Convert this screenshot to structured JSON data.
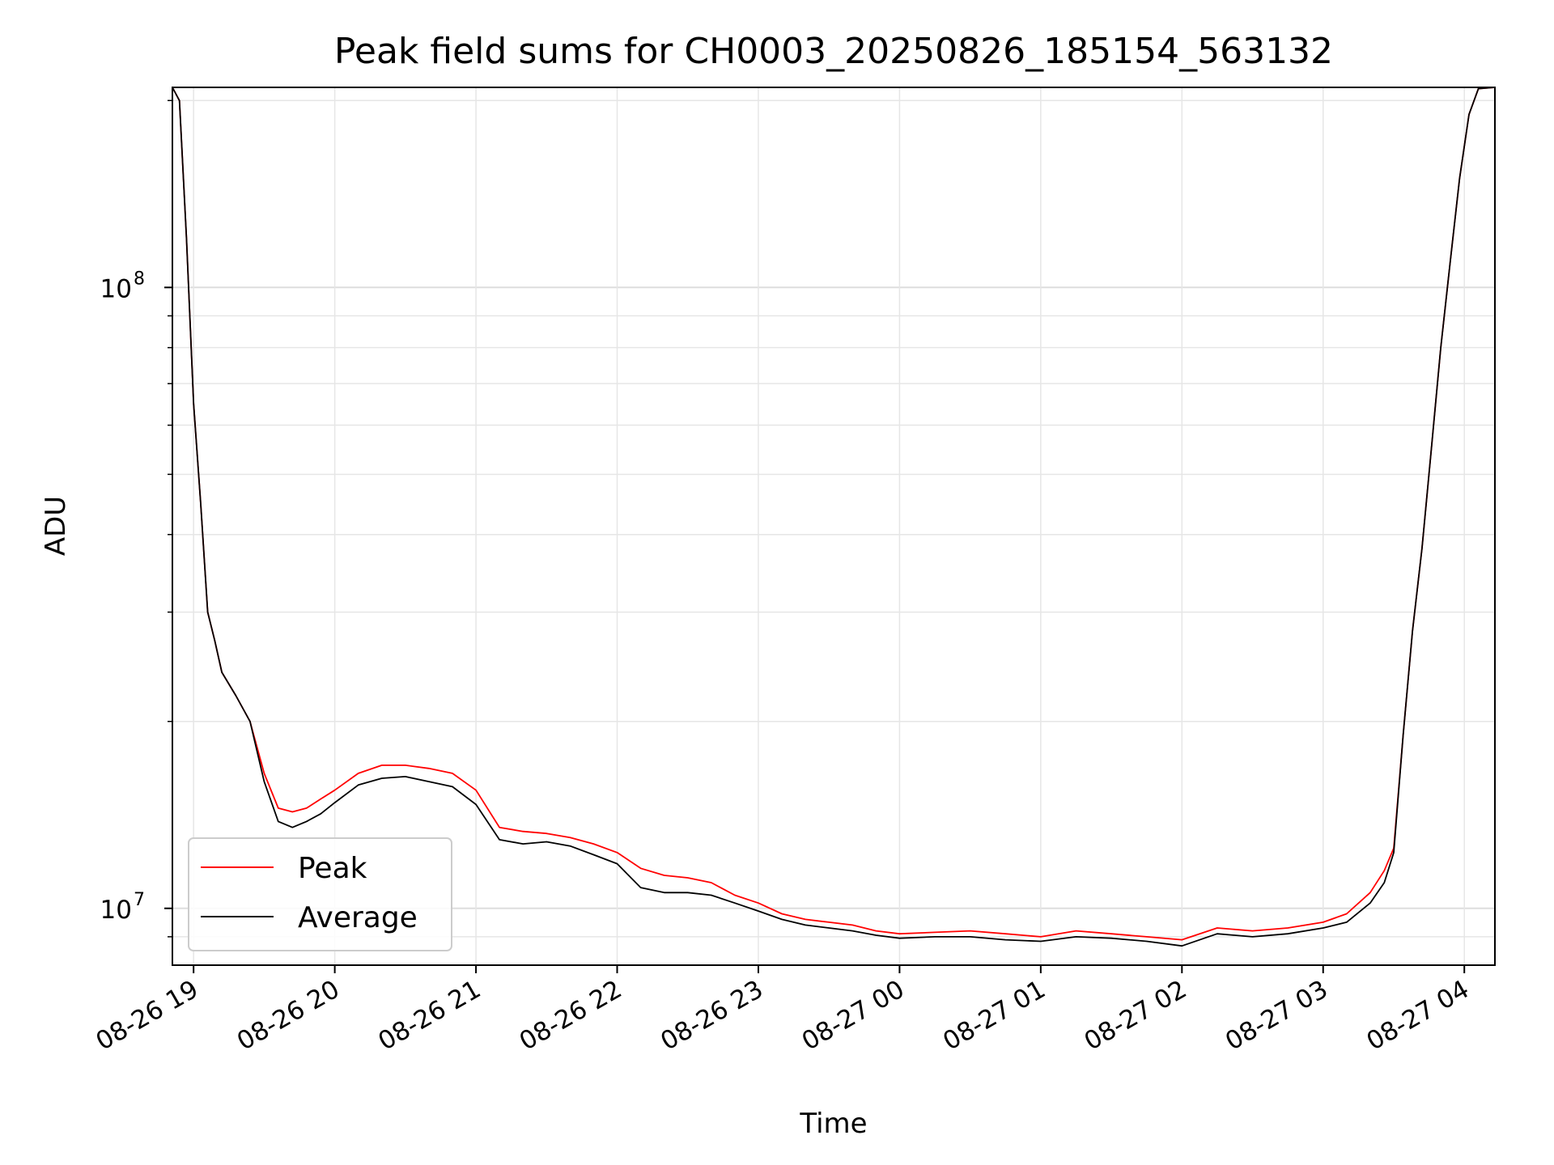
{
  "chart_data": {
    "type": "line",
    "title": "Peak field sums for CH0003_20250826_185154_563132",
    "xlabel": "Time",
    "ylabel": "ADU",
    "yscale": "log",
    "ylim": [
      8100000,
      210000000
    ],
    "xlim": [
      "2025-08-26 18:51",
      "2025-08-27 04:13"
    ],
    "grid": true,
    "legend_placement": "lower-left",
    "x_ticks": [
      "08-26 19",
      "08-26 20",
      "08-26 21",
      "08-26 22",
      "08-26 23",
      "08-27 00",
      "08-27 01",
      "08-27 02",
      "08-27 03",
      "08-27 04"
    ],
    "y_ticks": [
      {
        "base": "10",
        "exp": "7",
        "value": 10000000
      },
      {
        "base": "10",
        "exp": "8",
        "value": 100000000
      }
    ],
    "x": [
      "2025-08-26 18:51",
      "2025-08-26 18:54",
      "2025-08-26 18:57",
      "2025-08-26 19:00",
      "2025-08-26 19:03",
      "2025-08-26 19:06",
      "2025-08-26 19:09",
      "2025-08-26 19:12",
      "2025-08-26 19:18",
      "2025-08-26 19:24",
      "2025-08-26 19:30",
      "2025-08-26 19:36",
      "2025-08-26 19:42",
      "2025-08-26 19:48",
      "2025-08-26 19:54",
      "2025-08-26 20:00",
      "2025-08-26 20:10",
      "2025-08-26 20:20",
      "2025-08-26 20:30",
      "2025-08-26 20:40",
      "2025-08-26 20:50",
      "2025-08-26 21:00",
      "2025-08-26 21:10",
      "2025-08-26 21:20",
      "2025-08-26 21:30",
      "2025-08-26 21:40",
      "2025-08-26 21:50",
      "2025-08-26 22:00",
      "2025-08-26 22:10",
      "2025-08-26 22:20",
      "2025-08-26 22:30",
      "2025-08-26 22:40",
      "2025-08-26 22:50",
      "2025-08-26 23:00",
      "2025-08-26 23:10",
      "2025-08-26 23:20",
      "2025-08-26 23:30",
      "2025-08-26 23:40",
      "2025-08-26 23:50",
      "2025-08-27 00:00",
      "2025-08-27 00:15",
      "2025-08-27 00:30",
      "2025-08-27 00:45",
      "2025-08-27 01:00",
      "2025-08-27 01:15",
      "2025-08-27 01:30",
      "2025-08-27 01:45",
      "2025-08-27 02:00",
      "2025-08-27 02:15",
      "2025-08-27 02:30",
      "2025-08-27 02:45",
      "2025-08-27 03:00",
      "2025-08-27 03:10",
      "2025-08-27 03:20",
      "2025-08-27 03:26",
      "2025-08-27 03:30",
      "2025-08-27 03:34",
      "2025-08-27 03:38",
      "2025-08-27 03:42",
      "2025-08-27 03:46",
      "2025-08-27 03:50",
      "2025-08-27 03:54",
      "2025-08-27 03:58",
      "2025-08-27 04:02",
      "2025-08-27 04:06",
      "2025-08-27 04:13"
    ],
    "series": [
      {
        "name": "Peak",
        "color": "#ff0000",
        "values": [
          210000000,
          200000000,
          120000000,
          65000000,
          45000000,
          30000000,
          27000000,
          24000000,
          22000000,
          20000000,
          16500000,
          14500000,
          14300000,
          14500000,
          15000000,
          15500000,
          16500000,
          17000000,
          17000000,
          16800000,
          16500000,
          15500000,
          13500000,
          13300000,
          13200000,
          13000000,
          12700000,
          12300000,
          11600000,
          11300000,
          11200000,
          11000000,
          10500000,
          10200000,
          9800000,
          9600000,
          9500000,
          9400000,
          9200000,
          9100000,
          9150000,
          9200000,
          9100000,
          9000000,
          9200000,
          9100000,
          9000000,
          8900000,
          9300000,
          9200000,
          9300000,
          9500000,
          9800000,
          10600000,
          11500000,
          12500000,
          19000000,
          28000000,
          38000000,
          55000000,
          80000000,
          110000000,
          150000000,
          190000000,
          209000000,
          210000000
        ]
      },
      {
        "name": "Average",
        "color": "#000000",
        "values": [
          210000000,
          200000000,
          120000000,
          65000000,
          45000000,
          30000000,
          27000000,
          24000000,
          22000000,
          20000000,
          16000000,
          13800000,
          13500000,
          13800000,
          14200000,
          14800000,
          15800000,
          16200000,
          16300000,
          16000000,
          15700000,
          14700000,
          12900000,
          12700000,
          12800000,
          12600000,
          12200000,
          11800000,
          10800000,
          10600000,
          10600000,
          10500000,
          10200000,
          9900000,
          9600000,
          9400000,
          9300000,
          9200000,
          9050000,
          8950000,
          9000000,
          9000000,
          8900000,
          8850000,
          9000000,
          8950000,
          8850000,
          8700000,
          9100000,
          9000000,
          9100000,
          9300000,
          9500000,
          10200000,
          11000000,
          12300000,
          19000000,
          28000000,
          38000000,
          55000000,
          80000000,
          110000000,
          150000000,
          190000000,
          209000000,
          210000000
        ]
      }
    ]
  }
}
